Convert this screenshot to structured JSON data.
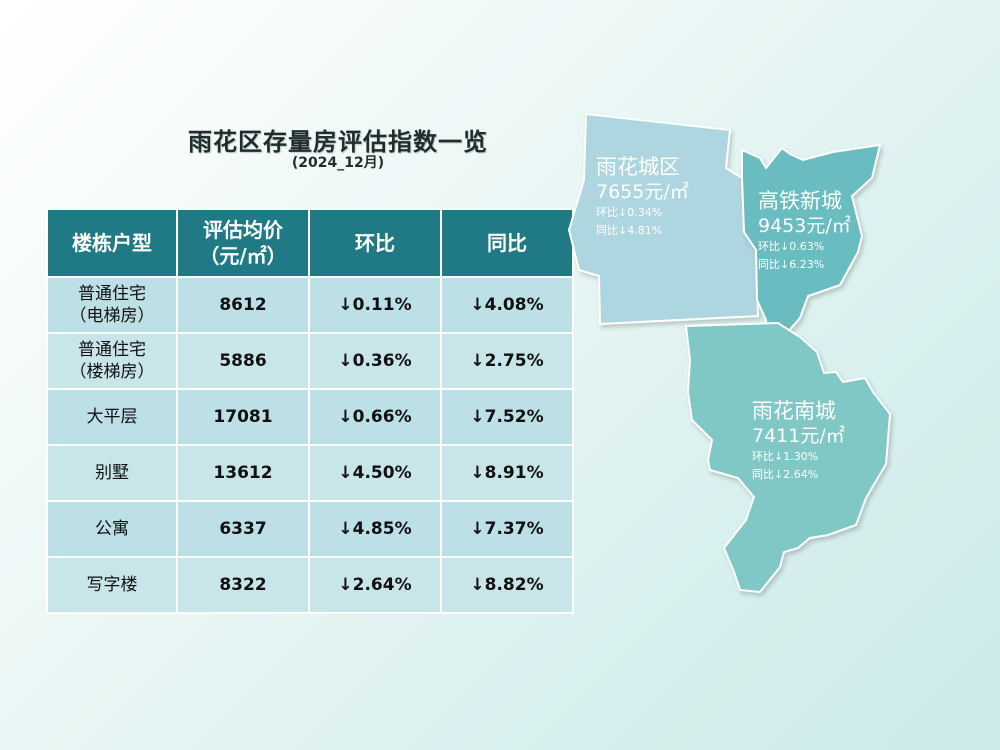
{
  "title": "雨花区存量房评估指数一览",
  "subtitle": "(2024_12月)",
  "table": {
    "headers": [
      "楼栋户型",
      "评估均价\n（元/㎡）",
      "环比",
      "同比"
    ],
    "rows": [
      {
        "type": "普通住宅\n（电梯房）",
        "price": "8612",
        "mom": "↓0.11%",
        "yoy": "↓4.08%"
      },
      {
        "type": "普通住宅\n（楼梯房）",
        "price": "5886",
        "mom": "↓0.36%",
        "yoy": "↓2.75%"
      },
      {
        "type": "大平层",
        "price": "17081",
        "mom": "↓0.66%",
        "yoy": "↓7.52%"
      },
      {
        "type": "别墅",
        "price": "13612",
        "mom": "↓4.50%",
        "yoy": "↓8.91%"
      },
      {
        "type": "公寓",
        "price": "6337",
        "mom": "↓4.85%",
        "yoy": "↓7.37%"
      },
      {
        "type": "写字楼",
        "price": "8322",
        "mom": "↓2.64%",
        "yoy": "↓8.82%"
      }
    ]
  },
  "regions": [
    {
      "name": "雨花城区",
      "price": "7655元/㎡",
      "mom": "环比↓0.34%",
      "yoy": "同比↓4.81%",
      "color": "#aed6e0"
    },
    {
      "name": "高铁新城",
      "price": "9453元/㎡",
      "mom": "环比↓0.63%",
      "yoy": "同比↓6.23%",
      "color": "#69bcbf"
    },
    {
      "name": "雨花南城",
      "price": "7411元/㎡",
      "mom": "环比↓1.30%",
      "yoy": "同比↓2.64%",
      "color": "#7fc8c6"
    }
  ]
}
